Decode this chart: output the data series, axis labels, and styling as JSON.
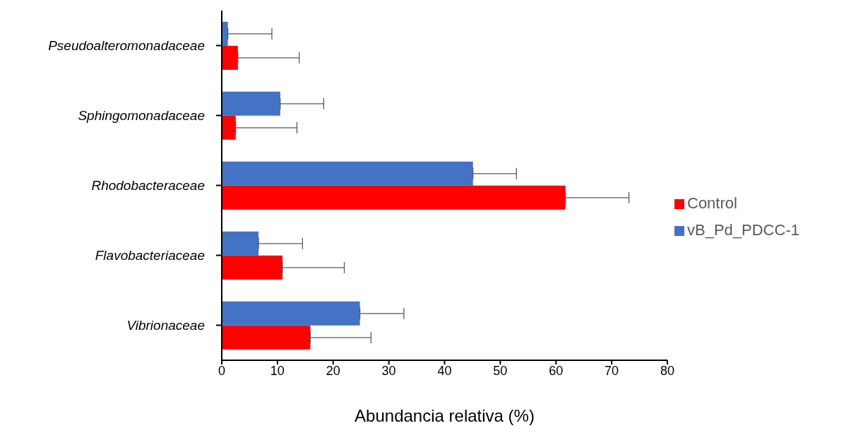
{
  "chart_data": {
    "type": "bar",
    "orientation": "horizontal",
    "xlabel": "Abundancia relativa (%)",
    "categories": [
      "Pseudoalteromonadaceae",
      "Sphingomonadaceae",
      "Rhodobacteraceae",
      "Flavobacteriaceae",
      "Vibrionaceae"
    ],
    "series": [
      {
        "name": "vB_Pd_PDCC-1",
        "color": "#4472c4",
        "values": [
          1.1,
          10.5,
          45.1,
          6.6,
          24.8
        ],
        "errors": [
          [
            1.1,
            9.0
          ],
          [
            10.5,
            18.3
          ],
          [
            45.1,
            52.9
          ],
          [
            6.6,
            14.5
          ],
          [
            24.8,
            32.7
          ]
        ]
      },
      {
        "name": "Control",
        "color": "#ff0000",
        "values": [
          2.9,
          2.5,
          61.7,
          10.9,
          15.9
        ],
        "errors": [
          [
            2.9,
            13.9
          ],
          [
            2.5,
            13.5
          ],
          [
            61.7,
            73.1
          ],
          [
            10.9,
            22.0
          ],
          [
            15.9,
            26.8
          ]
        ]
      }
    ],
    "xlim": [
      0,
      80
    ],
    "xticks": [
      0,
      10,
      20,
      30,
      40,
      50,
      60,
      70,
      80
    ],
    "grid": false,
    "legend": "right"
  }
}
